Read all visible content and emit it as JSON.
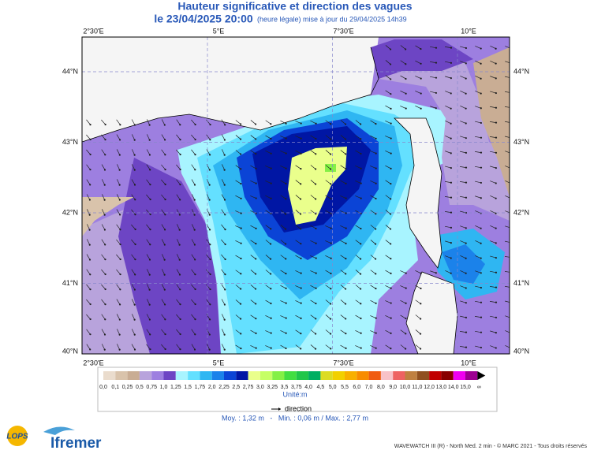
{
  "header": {
    "title": "Hauteur significative et direction des vagues",
    "date": "le 23/04/2025 20:00",
    "note": "(heure légale) mise à jour du 29/04/2025 14h39"
  },
  "map": {
    "lon_labels": [
      "2°30'E",
      "5°E",
      "7°30'E",
      "10°E"
    ],
    "lat_labels": [
      "44°N",
      "43°N",
      "42°N",
      "41°N",
      "40°N"
    ]
  },
  "legend": {
    "cells": [
      {
        "label": "0,0",
        "color": "#eadccd"
      },
      {
        "label": "0,1",
        "color": "#d9c3ab"
      },
      {
        "label": "0,25",
        "color": "#c9ad94"
      },
      {
        "label": "0,5",
        "color": "#b8a3dc"
      },
      {
        "label": "0,75",
        "color": "#9d7fe0"
      },
      {
        "label": "1,0",
        "color": "#6d45c4"
      },
      {
        "label": "1,25",
        "color": "#a8f4ff"
      },
      {
        "label": "1,5",
        "color": "#64e0ff"
      },
      {
        "label": "1,75",
        "color": "#2fb6f2"
      },
      {
        "label": "2,0",
        "color": "#1b82ea"
      },
      {
        "label": "2,25",
        "color": "#0b44d6"
      },
      {
        "label": "2,5",
        "color": "#0016a4"
      },
      {
        "label": "2,75",
        "color": "#eaff8c"
      },
      {
        "label": "3,0",
        "color": "#c6ff66"
      },
      {
        "label": "3,25",
        "color": "#84f046"
      },
      {
        "label": "3,5",
        "color": "#42de42"
      },
      {
        "label": "3,75",
        "color": "#20c64a"
      },
      {
        "label": "4,0",
        "color": "#00ae62"
      },
      {
        "label": "4,5",
        "color": "#dcdc24"
      },
      {
        "label": "5,0",
        "color": "#f2d000"
      },
      {
        "label": "5,5",
        "color": "#f8b000"
      },
      {
        "label": "6,0",
        "color": "#f88c00"
      },
      {
        "label": "7,0",
        "color": "#f05c10"
      },
      {
        "label": "8,0",
        "color": "#f8c2c8"
      },
      {
        "label": "9,0",
        "color": "#ee6262"
      },
      {
        "label": "10,0",
        "color": "#bf8040"
      },
      {
        "label": "11,0",
        "color": "#905020"
      },
      {
        "label": "12,0",
        "color": "#c00000"
      },
      {
        "label": "13,0",
        "color": "#880000"
      },
      {
        "label": "14,0",
        "color": "#f000f0"
      },
      {
        "label": "15,0",
        "color": "#9c0090"
      }
    ],
    "infinity": "∞",
    "unit": "Unité:m",
    "direction": "direction"
  },
  "stats": "Moy. : 1,32 m   -   Min. : 0,06 m / Max. : 2,77 m",
  "footer": {
    "credit": "WAVEWATCH III (R) - North Med. 2 min - © MARC 2021 - Tous droits réservés",
    "logo1": "LOPS",
    "logo2": "Ifremer"
  }
}
